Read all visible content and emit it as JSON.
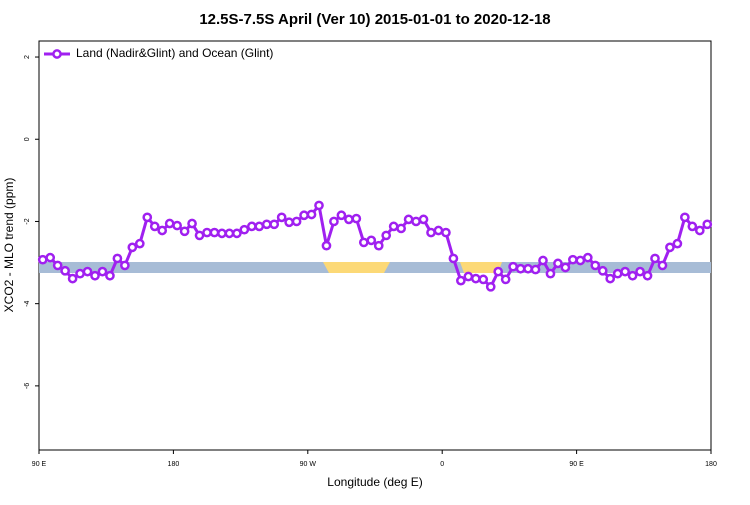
{
  "chart_data": {
    "type": "line",
    "title": "12.5S-7.5S April (Ver 10)   2015-01-01 to 2020-12-18",
    "xlabel": "Longitude (deg E)",
    "ylabel": "XCO2 - MLO trend (ppm)",
    "xlim": [
      90,
      540
    ],
    "ylim": [
      -7.56,
      2.39
    ],
    "xticks": [
      {
        "value": 90,
        "label": "90 E"
      },
      180,
      {
        "value": 270,
        "label": "90 W"
      },
      {
        "value": 360,
        "label": "0"
      },
      {
        "value": 450,
        "label": "90 E"
      },
      {
        "value": 540,
        "label": "180"
      }
    ],
    "yticks": [
      2,
      0,
      -2,
      -4,
      -6
    ],
    "legend": "upper left",
    "x": [
      92.5,
      97.5,
      102.5,
      107.5,
      112.5,
      117.5,
      122.5,
      127.5,
      132.5,
      137.5,
      142.5,
      147.5,
      152.5,
      157.5,
      162.5,
      167.5,
      172.5,
      177.5,
      182.5,
      187.5,
      192.5,
      197.5,
      202.5,
      207.5,
      212.5,
      217.5,
      222.5,
      227.5,
      232.5,
      237.5,
      242.5,
      247.5,
      252.5,
      257.5,
      262.5,
      267.5,
      272.5,
      277.5,
      282.5,
      287.5,
      292.5,
      297.5,
      302.5,
      307.5,
      312.5,
      317.5,
      322.5,
      327.5,
      332.5,
      337.5,
      342.5,
      347.5,
      352.5,
      357.5,
      362.5,
      367.5,
      372.5,
      377.5,
      382.5,
      387.5,
      392.5,
      397.5,
      402.5,
      407.5,
      412.5,
      417.5,
      422.5,
      427.5,
      432.5,
      437.5,
      442.5,
      447.5,
      452.5,
      457.5,
      462.5,
      467.5,
      472.5,
      477.5,
      482.5,
      487.5,
      492.5,
      497.5,
      502.5,
      507.5,
      512.5,
      517.5,
      522.5,
      527.5,
      532.5,
      537.5
    ],
    "series": [
      {
        "name": "Land (Nadir&Glint) and Ocean (Glint)",
        "color": "#a020f0",
        "values": [
          -2.93,
          -2.88,
          -3.07,
          -3.2,
          -3.39,
          -3.27,
          -3.22,
          -3.32,
          -3.22,
          -3.32,
          -2.9,
          -3.07,
          -2.63,
          -2.54,
          -1.9,
          -2.12,
          -2.22,
          -2.05,
          -2.1,
          -2.24,
          -2.05,
          -2.34,
          -2.27,
          -2.27,
          -2.29,
          -2.29,
          -2.29,
          -2.2,
          -2.12,
          -2.12,
          -2.07,
          -2.07,
          -1.9,
          -2.02,
          -2.0,
          -1.85,
          -1.83,
          -1.61,
          -2.59,
          -2.0,
          -1.85,
          -1.95,
          -1.93,
          -2.51,
          -2.46,
          -2.59,
          -2.34,
          -2.12,
          -2.17,
          -1.95,
          -2.0,
          -1.95,
          -2.27,
          -2.22,
          -2.27,
          -2.9,
          -3.44,
          -3.34,
          -3.39,
          -3.41,
          -3.59,
          -3.22,
          -3.41,
          -3.1,
          -3.15,
          -3.15,
          -3.17,
          -2.95,
          -3.27,
          -3.02,
          -3.12,
          -2.93,
          -2.95,
          -2.88,
          -3.07,
          -3.2,
          -3.39,
          -3.27,
          -3.22,
          -3.32,
          -3.22,
          -3.32,
          -2.9,
          -3.07,
          -2.63,
          -2.54,
          -1.9,
          -2.12,
          -2.22,
          -2.07
        ]
      }
    ]
  }
}
